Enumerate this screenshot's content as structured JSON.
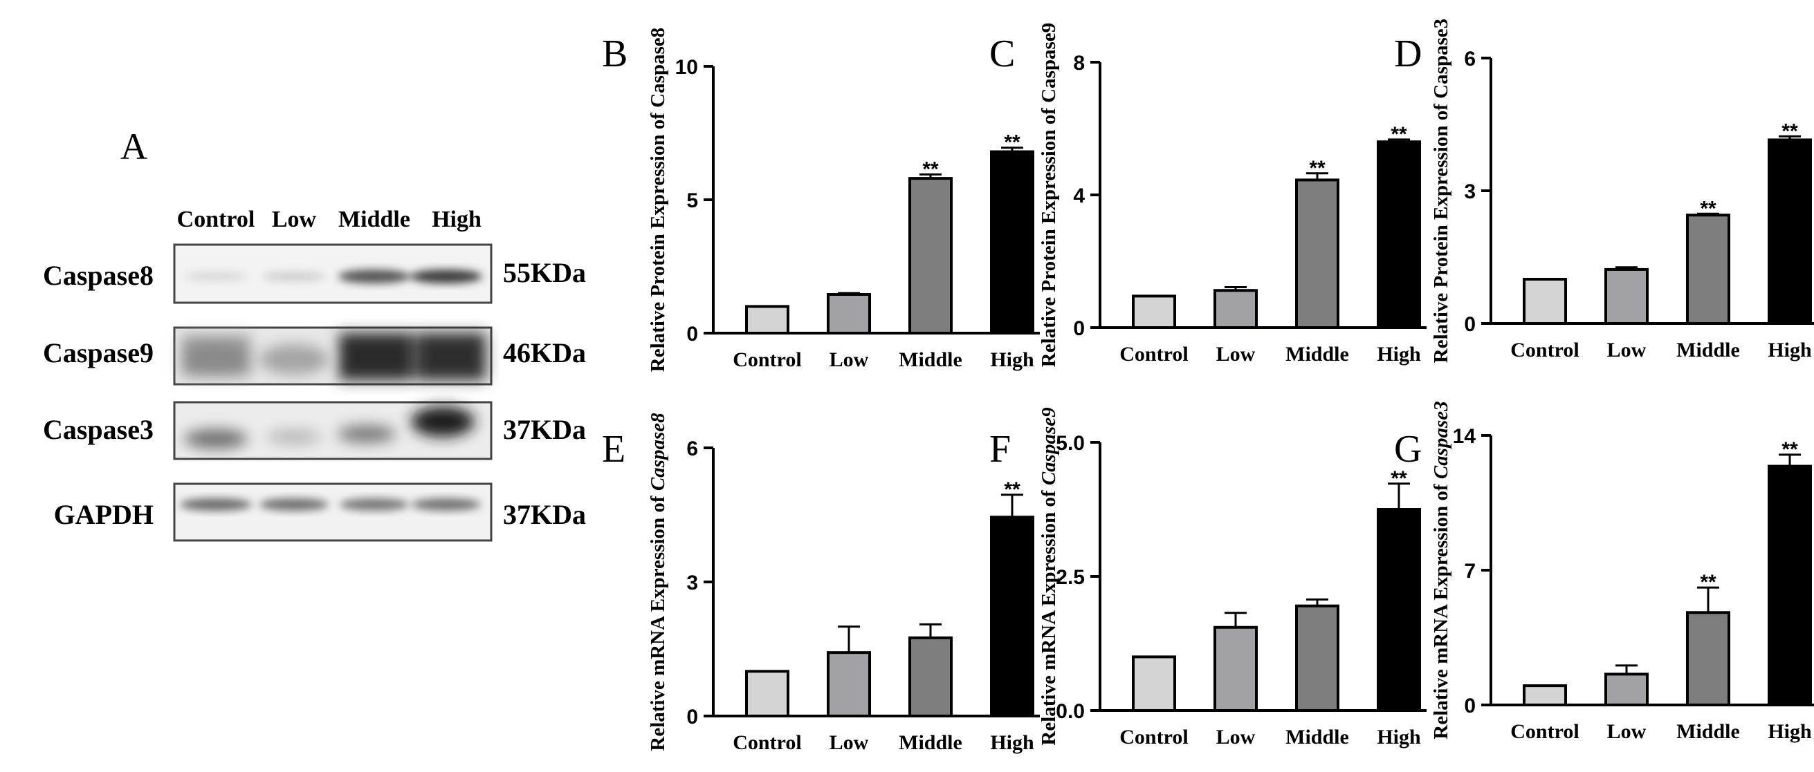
{
  "western_blot": {
    "panel_letter": "A",
    "columns": [
      "Control",
      "Low",
      "Middle",
      "High"
    ],
    "rows": [
      {
        "name": "Caspase8",
        "size": "55KDa"
      },
      {
        "name": "Caspase9",
        "size": "46KDa"
      },
      {
        "name": "Caspase3",
        "size": "37KDa"
      },
      {
        "name": "GAPDH",
        "size": "37KDa"
      }
    ]
  },
  "chart_data": [
    {
      "panel": "B",
      "type": "bar",
      "categories": [
        "Control",
        "Low",
        "Middle",
        "High"
      ],
      "values": [
        1.0,
        1.45,
        5.8,
        6.8
      ],
      "errors": [
        0,
        0.05,
        0.15,
        0.15
      ],
      "significance": [
        "",
        "",
        "**",
        "**"
      ],
      "ylabel_prefix": "Relative Protein Expression of ",
      "ylabel_gene": "Caspase8",
      "gene_italic": false,
      "ylim": [
        0,
        10
      ],
      "yticks": [
        "0",
        "5",
        "10"
      ],
      "ytick_values": [
        0,
        5,
        10
      ]
    },
    {
      "panel": "C",
      "type": "bar",
      "categories": [
        "Control",
        "Low",
        "Middle",
        "High"
      ],
      "values": [
        0.95,
        1.12,
        4.45,
        5.6
      ],
      "errors": [
        0,
        0.1,
        0.2,
        0.07
      ],
      "significance": [
        "",
        "",
        "**",
        "**"
      ],
      "ylabel_prefix": "Relative Protein Expression of ",
      "ylabel_gene": "Caspase9",
      "gene_italic": false,
      "ylim": [
        0,
        8
      ],
      "yticks": [
        "0",
        "4",
        "8"
      ],
      "ytick_values": [
        0,
        4,
        8
      ]
    },
    {
      "panel": "D",
      "type": "bar",
      "categories": [
        "Control",
        "Low",
        "Middle",
        "High"
      ],
      "values": [
        1.0,
        1.22,
        2.45,
        4.15
      ],
      "errors": [
        0,
        0.05,
        0.03,
        0.08
      ],
      "significance": [
        "",
        "",
        "**",
        "**"
      ],
      "ylabel_prefix": "Relative Protein Expression of ",
      "ylabel_gene": "Caspase3",
      "gene_italic": false,
      "ylim": [
        0,
        6
      ],
      "yticks": [
        "0",
        "3",
        "6"
      ],
      "ytick_values": [
        0,
        3,
        6
      ]
    },
    {
      "panel": "E",
      "type": "bar",
      "categories": [
        "Control",
        "Low",
        "Middle",
        "High"
      ],
      "values": [
        1.0,
        1.42,
        1.75,
        4.45
      ],
      "errors": [
        0,
        0.58,
        0.3,
        0.5
      ],
      "significance": [
        "",
        "",
        "",
        "**"
      ],
      "ylabel_prefix": "Relative mRNA Expression of ",
      "ylabel_gene": "Caspase8",
      "gene_italic": true,
      "ylim": [
        0,
        6
      ],
      "yticks": [
        "0",
        "3",
        "6"
      ],
      "ytick_values": [
        0,
        3,
        6
      ]
    },
    {
      "panel": "F",
      "type": "bar",
      "categories": [
        "Control",
        "Low",
        "Middle",
        "High"
      ],
      "values": [
        1.0,
        1.55,
        1.95,
        3.75
      ],
      "errors": [
        0,
        0.27,
        0.12,
        0.48
      ],
      "significance": [
        "",
        "",
        "",
        "**"
      ],
      "ylabel_prefix": "Relative mRNA Expression of ",
      "ylabel_gene": "Caspase9",
      "gene_italic": true,
      "ylim": [
        0,
        5
      ],
      "yticks": [
        "0.0",
        "2.5",
        "5.0"
      ],
      "ytick_values": [
        0,
        2.5,
        5
      ]
    },
    {
      "panel": "G",
      "type": "bar",
      "categories": [
        "Control",
        "Low",
        "Middle",
        "High"
      ],
      "values": [
        1.0,
        1.6,
        4.8,
        12.4
      ],
      "errors": [
        0,
        0.45,
        1.3,
        0.6
      ],
      "significance": [
        "",
        "",
        "**",
        "**"
      ],
      "ylabel_prefix": "Relative mRNA Expression of ",
      "ylabel_gene": "Caspase3",
      "gene_italic": true,
      "ylim": [
        0,
        14
      ],
      "yticks": [
        "0",
        "7",
        "14"
      ],
      "ytick_values": [
        0,
        7,
        14
      ]
    }
  ],
  "colors": {
    "Control": "#d4d4d4",
    "Low": "#a2a2a6",
    "Middle": "#7e7e7e",
    "High": "#000000"
  }
}
